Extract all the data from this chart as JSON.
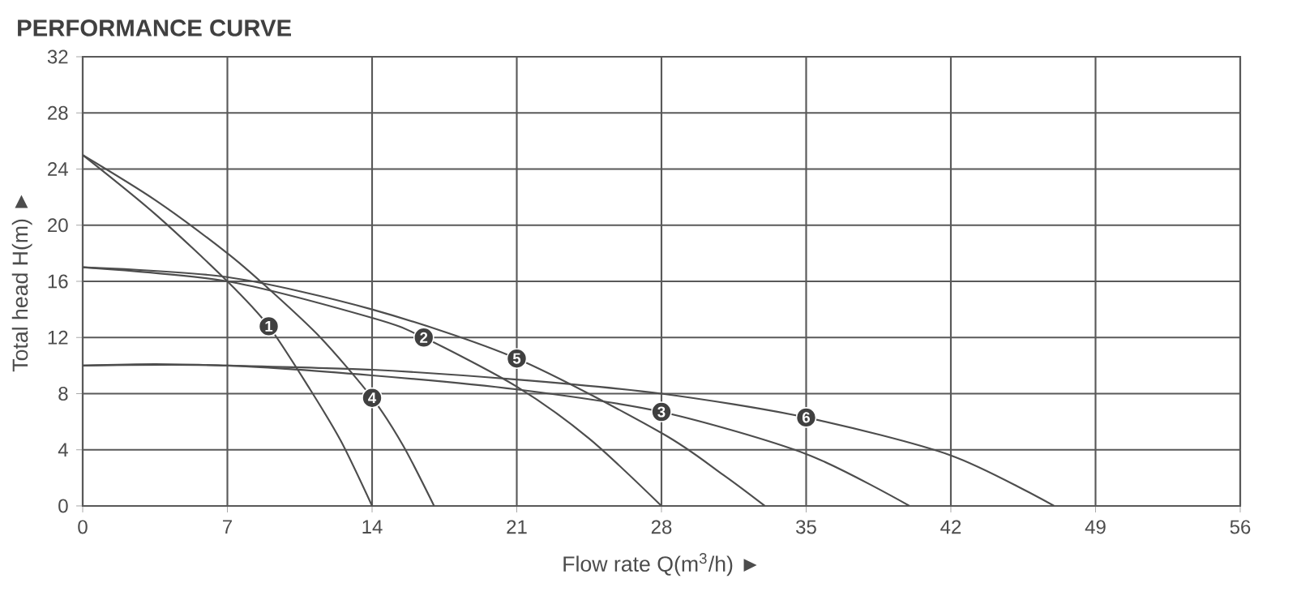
{
  "chart_data": {
    "type": "line",
    "title": "PERFORMANCE CURVE",
    "xlabel": "Flow rate Q(m$^{3}$/h) ►",
    "ylabel": "Total head H(m) ►",
    "xlim": [
      0,
      56
    ],
    "ylim": [
      0,
      32
    ],
    "xticks": [
      0,
      7,
      14,
      21,
      28,
      35,
      42,
      49,
      56
    ],
    "yticks": [
      0,
      4,
      8,
      12,
      16,
      20,
      24,
      28,
      32
    ],
    "grid": true,
    "series": [
      {
        "color": "#4d4d4d",
        "x": [
          0,
          3.5,
          7,
          9,
          11,
          12.5,
          14
        ],
        "values": [
          25,
          20.8,
          16,
          12.8,
          8.3,
          4.6,
          0
        ]
      },
      {
        "color": "#4d4d4d",
        "x": [
          0,
          7,
          14,
          16.5,
          21,
          24.5,
          28
        ],
        "values": [
          17,
          16,
          13.4,
          12,
          8.5,
          4.8,
          0
        ]
      },
      {
        "color": "#4d4d4d",
        "x": [
          0,
          7,
          14,
          21,
          28,
          35,
          40
        ],
        "values": [
          10,
          10,
          9.3,
          8.3,
          6.7,
          3.7,
          0
        ]
      },
      {
        "color": "#4d4d4d",
        "x": [
          0,
          3.5,
          7,
          8.9,
          11.5,
          14,
          15.5,
          17
        ],
        "values": [
          25,
          21.8,
          18,
          15.6,
          12,
          7.7,
          4.3,
          0
        ]
      },
      {
        "color": "#4d4d4d",
        "x": [
          0,
          7,
          14,
          21,
          28,
          31,
          33
        ],
        "values": [
          17,
          16.3,
          14,
          10.5,
          5.2,
          2.2,
          0
        ]
      },
      {
        "color": "#4d4d4d",
        "x": [
          0,
          3.5,
          7,
          14,
          21,
          28,
          35,
          42,
          47
        ],
        "values": [
          10,
          10.1,
          10,
          9.7,
          9,
          8,
          6.3,
          3.6,
          0
        ]
      }
    ],
    "annotations": [
      {
        "text": "1",
        "x": 9,
        "y": 12.8
      },
      {
        "text": "2",
        "x": 16.5,
        "y": 12
      },
      {
        "text": "3",
        "x": 28,
        "y": 6.7
      },
      {
        "text": "4",
        "x": 14,
        "y": 7.7
      },
      {
        "text": "5",
        "x": 21,
        "y": 10.5
      },
      {
        "text": "6",
        "x": 35,
        "y": 6.3
      }
    ]
  }
}
